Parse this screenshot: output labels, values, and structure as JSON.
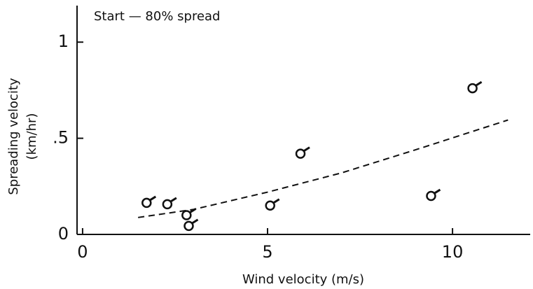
{
  "chart_data": {
    "type": "scatter",
    "annotation": "Start — 80% spread",
    "xlabel": "Wind velocity (m/s)",
    "ylabel": [
      "Spreading velocity",
      "(km/hr)"
    ],
    "x": [
      1.73,
      2.29,
      2.81,
      2.87,
      5.07,
      5.89,
      9.42,
      10.54
    ],
    "values": [
      0.164,
      0.157,
      0.1,
      0.044,
      0.15,
      0.42,
      0.2,
      0.76
    ],
    "color": "#111111",
    "fit": {
      "x": [
        1.5,
        3,
        5,
        7,
        9,
        11.5
      ],
      "values": [
        0.088,
        0.13,
        0.22,
        0.32,
        0.44,
        0.595
      ]
    },
    "xlim": [
      -0.15,
      12.1
    ],
    "ylim": [
      0,
      1.19
    ],
    "xticks": [
      0,
      5,
      10
    ],
    "yticks": [
      0,
      {
        "value": 0.5,
        "label": ".5"
      },
      1
    ],
    "grid": false
  }
}
